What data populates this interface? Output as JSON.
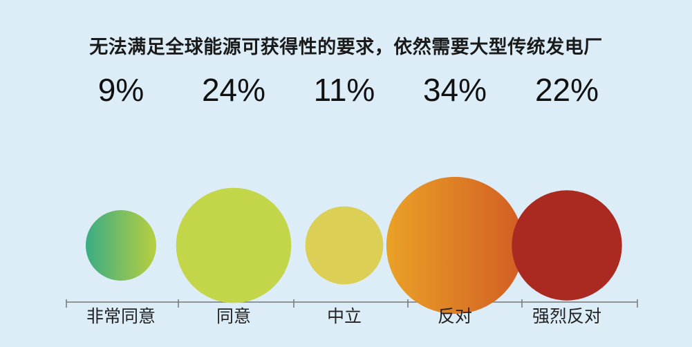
{
  "chart_data": {
    "type": "bubble",
    "title": "无法满足全球能源可获得性的要求，依然需要大型传统发电厂",
    "categories": [
      "非常同意",
      "同意",
      "中立",
      "反对",
      "强烈反对"
    ],
    "values": [
      9,
      24,
      11,
      34,
      22
    ],
    "value_labels": [
      "9%",
      "24%",
      "11%",
      "34%",
      "22%"
    ],
    "unit": "%",
    "legend": "none",
    "grid": false,
    "colors": [
      [
        "#3aac84",
        "#b8cf3f"
      ],
      [
        "#c3d549",
        "#c3d549"
      ],
      [
        "#dccf55",
        "#dccf55"
      ],
      [
        "#eaa126",
        "#d25d24"
      ],
      [
        "#aa2a22",
        "#aa2a22"
      ]
    ]
  }
}
